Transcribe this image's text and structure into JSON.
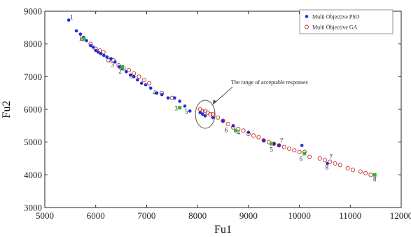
{
  "chart_data": {
    "type": "scatter",
    "xlabel": "Fu1",
    "ylabel": "Fu2",
    "xlim": [
      5000,
      12000
    ],
    "ylim": [
      3000,
      9000
    ],
    "x_ticks": [
      5000,
      6000,
      7000,
      8000,
      9000,
      10000,
      11000,
      12000
    ],
    "y_ticks": [
      3000,
      4000,
      5000,
      6000,
      7000,
      8000,
      9000
    ],
    "grid": false,
    "legend_placement": "top-right",
    "colors": {
      "pso": "#1f2fd6",
      "ga": "#c8302e",
      "highlight": "#2dbb2d",
      "axis": "#222222"
    },
    "series": [
      {
        "name": "Multi Objective PSO",
        "marker": "filled-circle",
        "x": [
          5470,
          5620,
          5700,
          5760,
          5820,
          5900,
          5950,
          6000,
          6050,
          6100,
          6160,
          6220,
          6300,
          6380,
          6460,
          6520,
          6600,
          6680,
          6750,
          6820,
          6900,
          6980,
          7080,
          7200,
          7300,
          7420,
          7550,
          7650,
          7750,
          7850,
          8050,
          8100,
          8150,
          8300,
          8500,
          8700,
          9000,
          9300,
          9500,
          9600,
          10050,
          10550
        ],
        "y": [
          8730,
          8400,
          8300,
          8200,
          8100,
          7950,
          7900,
          7800,
          7750,
          7700,
          7650,
          7600,
          7550,
          7450,
          7300,
          7250,
          7150,
          7050,
          7000,
          6900,
          6800,
          6750,
          6650,
          6500,
          6450,
          6350,
          6350,
          6250,
          6100,
          5950,
          5900,
          5850,
          5800,
          5750,
          5650,
          5500,
          5300,
          5050,
          4950,
          4900,
          4900,
          4350
        ]
      },
      {
        "name": "Multi Objective GA",
        "marker": "open-circle",
        "x": [
          5750,
          5900,
          6000,
          6080,
          6150,
          6250,
          6350,
          6450,
          6550,
          6650,
          6750,
          6850,
          6950,
          7050,
          7300,
          7500,
          8050,
          8100,
          8150,
          8200,
          8250,
          8300,
          8400,
          8500,
          8600,
          8700,
          8800,
          8900,
          9000,
          9100,
          9200,
          9300,
          9400,
          9500,
          9600,
          9700,
          9800,
          9900,
          10000,
          10100,
          10200,
          10400,
          10500,
          10600,
          10700,
          10800,
          10950,
          11050,
          11200,
          11300,
          11400
        ],
        "y": [
          8150,
          8000,
          7850,
          7800,
          7750,
          7500,
          7500,
          7350,
          7250,
          7200,
          7100,
          7000,
          6900,
          6800,
          6500,
          6350,
          6000,
          5950,
          5950,
          5900,
          5850,
          5850,
          5750,
          5650,
          5550,
          5450,
          5400,
          5350,
          5250,
          5200,
          5150,
          5050,
          5000,
          4950,
          4900,
          4850,
          4800,
          4750,
          4700,
          4700,
          4550,
          4500,
          4450,
          4400,
          4350,
          4300,
          4200,
          4150,
          4100,
          4050,
          4000
        ]
      }
    ],
    "highlighted_points": [
      {
        "label": "1",
        "x": 5770,
        "y": 8150
      },
      {
        "label": "2",
        "x": 6520,
        "y": 7300
      },
      {
        "label": "3",
        "x": 7650,
        "y": 6050
      },
      {
        "label": "4",
        "x": 8750,
        "y": 5350
      },
      {
        "label": "5",
        "x": 9450,
        "y": 4950
      },
      {
        "label": "6",
        "x": 10100,
        "y": 4650
      },
      {
        "label": "8",
        "x": 11480,
        "y": 4000
      }
    ],
    "point_labels": [
      {
        "text": "1",
        "x": 5530,
        "y": 8750
      },
      {
        "text": "1",
        "x": 5700,
        "y": 8100
      },
      {
        "text": "2",
        "x": 6280,
        "y": 7450
      },
      {
        "text": "2",
        "x": 6480,
        "y": 7100
      },
      {
        "text": "3",
        "x": 6330,
        "y": 7300
      },
      {
        "text": "3",
        "x": 6700,
        "y": 6950
      },
      {
        "text": "4",
        "x": 7150,
        "y": 6450
      },
      {
        "text": "3",
        "x": 7580,
        "y": 5970
      },
      {
        "text": "5",
        "x": 7780,
        "y": 5870
      },
      {
        "text": "6",
        "x": 8560,
        "y": 5300
      },
      {
        "text": "4",
        "x": 8800,
        "y": 5230
      },
      {
        "text": "7",
        "x": 9650,
        "y": 4970
      },
      {
        "text": "5",
        "x": 9450,
        "y": 4700
      },
      {
        "text": "6",
        "x": 10030,
        "y": 4430
      },
      {
        "text": "7",
        "x": 10620,
        "y": 4480
      },
      {
        "text": "8",
        "x": 10540,
        "y": 4170
      },
      {
        "text": "8",
        "x": 11480,
        "y": 3800
      }
    ],
    "annotation": {
      "text": "The range of acceptable responses",
      "circle_center": [
        8150,
        5850
      ],
      "arrow_tip": [
        8300,
        6150
      ]
    }
  }
}
